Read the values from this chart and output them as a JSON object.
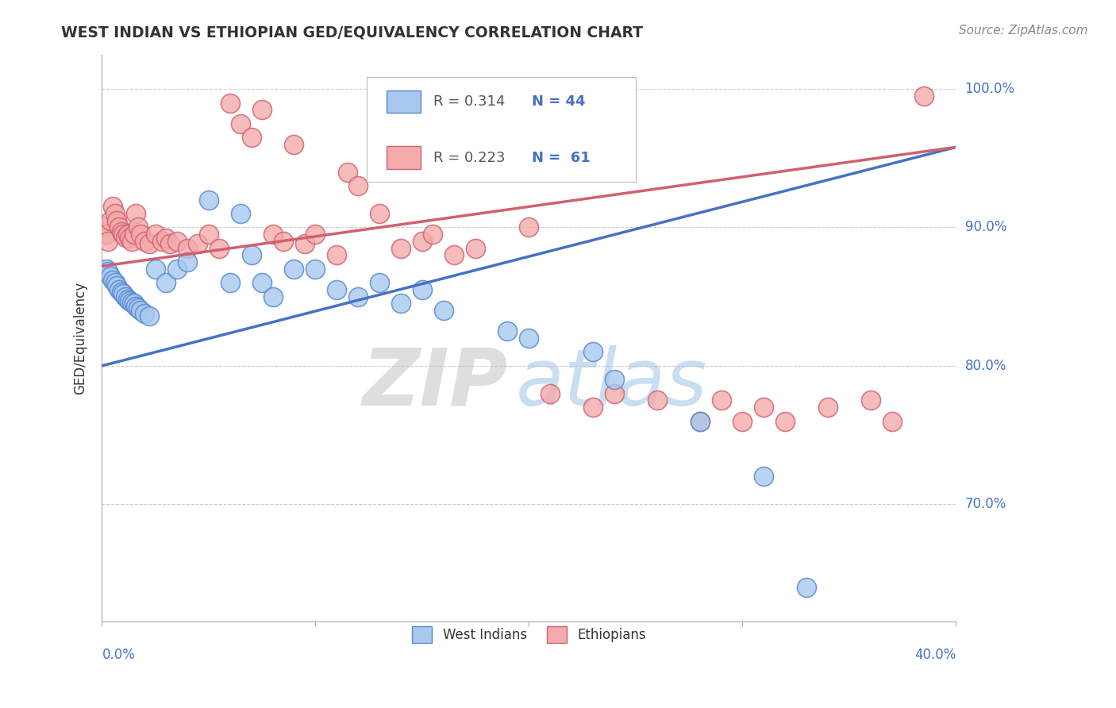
{
  "title": "WEST INDIAN VS ETHIOPIAN GED/EQUIVALENCY CORRELATION CHART",
  "source": "Source: ZipAtlas.com",
  "ylabel": "GED/Equivalency",
  "r1": "0.314",
  "n1": "44",
  "r2": "0.223",
  "n2": "61",
  "color_blue_fill": "#A8C8F0",
  "color_blue_edge": "#5588CC",
  "color_blue_line": "#4472C4",
  "color_pink_fill": "#F4AAAA",
  "color_pink_edge": "#D06070",
  "color_pink_line": "#D06070",
  "color_accent": "#4472C4",
  "xlim": [
    0.0,
    0.4
  ],
  "ylim": [
    0.615,
    1.025
  ],
  "yticks": [
    0.7,
    0.8,
    0.9,
    1.0
  ],
  "ytick_labels": [
    "70.0%",
    "80.0%",
    "90.0%",
    "100.0%"
  ],
  "xtick_positions": [
    0.0,
    0.1,
    0.2,
    0.3,
    0.4
  ],
  "watermark_zip": "ZIP",
  "watermark_atlas": "atlas",
  "blue_trend_x0": 0.0,
  "blue_trend_y0": 0.8,
  "blue_trend_x1": 0.4,
  "blue_trend_y1": 0.958,
  "pink_trend_x0": 0.0,
  "pink_trend_y0": 0.872,
  "pink_trend_x1": 0.4,
  "pink_trend_y1": 0.958,
  "grid_color": "#CCCCCC",
  "background_color": "#FFFFFF",
  "blue_x": [
    0.002,
    0.003,
    0.004,
    0.005,
    0.006,
    0.007,
    0.008,
    0.009,
    0.01,
    0.011,
    0.012,
    0.013,
    0.014,
    0.015,
    0.016,
    0.017,
    0.018,
    0.02,
    0.022,
    0.025,
    0.03,
    0.035,
    0.04,
    0.05,
    0.06,
    0.065,
    0.07,
    0.075,
    0.08,
    0.09,
    0.1,
    0.11,
    0.12,
    0.13,
    0.14,
    0.15,
    0.16,
    0.19,
    0.2,
    0.23,
    0.24,
    0.28,
    0.31,
    0.33
  ],
  "blue_y": [
    0.87,
    0.868,
    0.865,
    0.862,
    0.86,
    0.858,
    0.855,
    0.853,
    0.852,
    0.85,
    0.848,
    0.847,
    0.846,
    0.845,
    0.843,
    0.842,
    0.84,
    0.838,
    0.836,
    0.87,
    0.86,
    0.87,
    0.875,
    0.92,
    0.86,
    0.91,
    0.88,
    0.86,
    0.85,
    0.87,
    0.87,
    0.855,
    0.85,
    0.86,
    0.845,
    0.855,
    0.84,
    0.825,
    0.82,
    0.81,
    0.79,
    0.76,
    0.72,
    0.64
  ],
  "pink_x": [
    0.001,
    0.002,
    0.003,
    0.004,
    0.005,
    0.006,
    0.007,
    0.008,
    0.009,
    0.01,
    0.011,
    0.012,
    0.013,
    0.014,
    0.015,
    0.016,
    0.017,
    0.018,
    0.02,
    0.022,
    0.025,
    0.028,
    0.03,
    0.032,
    0.035,
    0.04,
    0.045,
    0.05,
    0.055,
    0.06,
    0.065,
    0.07,
    0.075,
    0.08,
    0.085,
    0.09,
    0.095,
    0.1,
    0.11,
    0.115,
    0.12,
    0.13,
    0.14,
    0.15,
    0.155,
    0.165,
    0.175,
    0.2,
    0.21,
    0.23,
    0.24,
    0.26,
    0.28,
    0.29,
    0.3,
    0.31,
    0.32,
    0.34,
    0.36,
    0.37,
    0.385
  ],
  "pink_y": [
    0.9,
    0.895,
    0.89,
    0.905,
    0.915,
    0.91,
    0.905,
    0.9,
    0.897,
    0.895,
    0.893,
    0.895,
    0.892,
    0.89,
    0.895,
    0.91,
    0.9,
    0.895,
    0.89,
    0.888,
    0.895,
    0.89,
    0.892,
    0.888,
    0.89,
    0.885,
    0.888,
    0.895,
    0.885,
    0.99,
    0.975,
    0.965,
    0.985,
    0.895,
    0.89,
    0.96,
    0.888,
    0.895,
    0.88,
    0.94,
    0.93,
    0.91,
    0.885,
    0.89,
    0.895,
    0.88,
    0.885,
    0.9,
    0.78,
    0.77,
    0.78,
    0.775,
    0.76,
    0.775,
    0.76,
    0.77,
    0.76,
    0.77,
    0.775,
    0.76,
    0.995
  ]
}
